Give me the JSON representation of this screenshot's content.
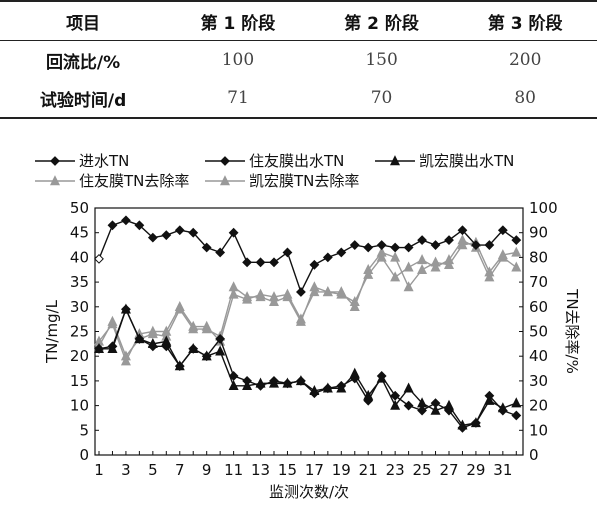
{
  "table": {
    "headers": [
      "项目",
      "第 1 阶段",
      "第 2 阶段",
      "第 3 阶段"
    ],
    "rows": [
      {
        "label": "回流比/%",
        "values": [
          "100",
          "150",
          "200"
        ]
      },
      {
        "label": "试验时间/d",
        "values": [
          "71",
          "70",
          "80"
        ]
      }
    ]
  },
  "chart_data": {
    "type": "line",
    "xlabel": "监测次数/次",
    "ylabel": "TN/mg/L",
    "y2label": "TN去除率/%",
    "xlim": [
      1,
      32
    ],
    "ylim": [
      0,
      50
    ],
    "y2lim": [
      0,
      100
    ],
    "x_ticks": [
      1,
      3,
      5,
      7,
      9,
      11,
      13,
      15,
      17,
      19,
      21,
      23,
      25,
      27,
      29,
      31
    ],
    "y_ticks": [
      0,
      5,
      10,
      15,
      20,
      25,
      30,
      35,
      40,
      45,
      50
    ],
    "y2_ticks": [
      0,
      10,
      20,
      30,
      40,
      50,
      60,
      70,
      80,
      90,
      100
    ],
    "grid": false,
    "legend_position": "top",
    "x": [
      1,
      2,
      3,
      4,
      5,
      6,
      7,
      8,
      9,
      10,
      11,
      12,
      13,
      14,
      15,
      16,
      17,
      18,
      19,
      20,
      21,
      22,
      23,
      24,
      25,
      26,
      27,
      28,
      29,
      30,
      31,
      32
    ],
    "series": [
      {
        "name": "进水TN",
        "axis": "left",
        "marker": "diamond-filled",
        "color": "#111111",
        "values": [
          39.7,
          46.5,
          47.5,
          46.5,
          44,
          44.5,
          45.5,
          45,
          42,
          41,
          45,
          39,
          39,
          39,
          41,
          33,
          38.5,
          40,
          41,
          42.5,
          42,
          42.5,
          42,
          42,
          43.5,
          42.5,
          43.5,
          45.5,
          42.5,
          42.5,
          45.5,
          43.5
        ]
      },
      {
        "name": "住友膜出水TN",
        "axis": "left",
        "marker": "diamond-filled",
        "color": "#111111",
        "values": [
          21.5,
          22,
          29.5,
          23.5,
          22,
          22,
          18,
          21.5,
          20,
          23.5,
          16,
          15,
          14,
          15,
          14.5,
          15,
          12.5,
          13.5,
          14,
          15.5,
          11,
          16,
          12,
          10,
          9,
          10.5,
          9,
          5.5,
          6.5,
          12,
          9,
          8
        ]
      },
      {
        "name": "凯宏膜出水TN",
        "axis": "left",
        "marker": "triangle-filled",
        "color": "#111111",
        "values": [
          21.5,
          21.5,
          29.5,
          23.5,
          22.5,
          23,
          18,
          21.5,
          20,
          21,
          14,
          14,
          14.5,
          14.5,
          14.5,
          15,
          13,
          13.5,
          13.5,
          16.5,
          12,
          15.5,
          10,
          13.5,
          10.5,
          9,
          10,
          6,
          6.5,
          11,
          9.5,
          10.5
        ]
      },
      {
        "name": "住友膜TN去除率",
        "axis": "right",
        "marker": "triangle-filled",
        "color": "#999999",
        "values": [
          46,
          53,
          38,
          49,
          50,
          50,
          60,
          52,
          52,
          46,
          65,
          63,
          65,
          64,
          65,
          55,
          66,
          66,
          65,
          62,
          73,
          80,
          72,
          76,
          79,
          76,
          79,
          87,
          84,
          72,
          80,
          76
        ]
      },
      {
        "name": "凯宏膜TN去除率",
        "axis": "right",
        "marker": "triangle-filled",
        "color": "#999999",
        "values": [
          44,
          54,
          40,
          47,
          49,
          48,
          59,
          51,
          51,
          48,
          68,
          64,
          64,
          62,
          64,
          54,
          68,
          66,
          66,
          60,
          75,
          82,
          80,
          68,
          75,
          78,
          77,
          85,
          86,
          74,
          81,
          82
        ]
      }
    ]
  }
}
